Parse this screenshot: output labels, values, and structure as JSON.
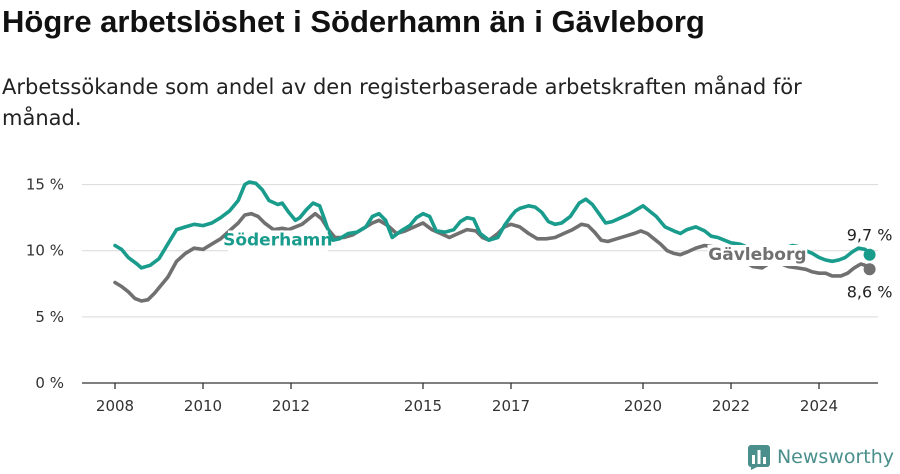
{
  "header": {
    "title": "Högre arbetslöshet i Söderhamn än i Gävleborg",
    "subtitle": "Arbetssökande som andel av den registerbaserade arbetskraften månad för månad."
  },
  "brand": {
    "name": "Newsworthy",
    "logo_icon": "bar-chart-logo-icon"
  },
  "colors": {
    "soderhamn": "#1a9c8d",
    "gavleborg": "#707070",
    "grid": "#d9d9d9",
    "axis": "#333333",
    "brand": "#4a8f8c"
  },
  "chart_data": {
    "type": "line",
    "title": "Högre arbetslöshet i Söderhamn än i Gävleborg",
    "subtitle": "Arbetssökande som andel av den registerbaserade arbetskraften månad för månad.",
    "xlabel": "",
    "ylabel": "",
    "xlim": [
      2007.7,
      2025.3
    ],
    "ylim": [
      0,
      15.5
    ],
    "x_ticks": [
      2008,
      2010,
      2012,
      2015,
      2017,
      2020,
      2022,
      2024
    ],
    "x_tick_labels": [
      "2008",
      "2010",
      "2012",
      "2015",
      "2017",
      "2020",
      "2022",
      "2024"
    ],
    "y_ticks": [
      0,
      5,
      10,
      15
    ],
    "y_tick_labels": [
      "0 %",
      "5 %",
      "10 %",
      "15 %"
    ],
    "grid": true,
    "legend": "inline labels",
    "series": [
      {
        "name": "Söderhamn",
        "label_position": [
          2011.7,
          10.4
        ],
        "end_label": "9,7 %",
        "points": [
          [
            2008.0,
            10.4
          ],
          [
            2008.15,
            10.1
          ],
          [
            2008.3,
            9.5
          ],
          [
            2008.5,
            9.0
          ],
          [
            2008.6,
            8.7
          ],
          [
            2008.8,
            8.9
          ],
          [
            2009.0,
            9.4
          ],
          [
            2009.2,
            10.5
          ],
          [
            2009.4,
            11.6
          ],
          [
            2009.6,
            11.8
          ],
          [
            2009.8,
            12.0
          ],
          [
            2010.0,
            11.9
          ],
          [
            2010.2,
            12.1
          ],
          [
            2010.4,
            12.5
          ],
          [
            2010.6,
            13.0
          ],
          [
            2010.8,
            13.8
          ],
          [
            2010.95,
            15.0
          ],
          [
            2011.05,
            15.2
          ],
          [
            2011.2,
            15.1
          ],
          [
            2011.35,
            14.6
          ],
          [
            2011.5,
            13.8
          ],
          [
            2011.7,
            13.5
          ],
          [
            2011.8,
            13.6
          ],
          [
            2011.95,
            12.9
          ],
          [
            2012.1,
            12.3
          ],
          [
            2012.2,
            12.5
          ],
          [
            2012.35,
            13.1
          ],
          [
            2012.5,
            13.6
          ],
          [
            2012.65,
            13.4
          ],
          [
            2012.75,
            12.5
          ],
          [
            2012.85,
            11.5
          ],
          [
            2012.95,
            10.8
          ],
          [
            2013.1,
            10.9
          ],
          [
            2013.3,
            11.3
          ],
          [
            2013.5,
            11.4
          ],
          [
            2013.7,
            11.8
          ],
          [
            2013.85,
            12.6
          ],
          [
            2014.0,
            12.8
          ],
          [
            2014.15,
            12.3
          ],
          [
            2014.3,
            11.0
          ],
          [
            2014.5,
            11.5
          ],
          [
            2014.7,
            11.9
          ],
          [
            2014.85,
            12.5
          ],
          [
            2015.0,
            12.8
          ],
          [
            2015.15,
            12.6
          ],
          [
            2015.3,
            11.5
          ],
          [
            2015.5,
            11.4
          ],
          [
            2015.7,
            11.6
          ],
          [
            2015.85,
            12.2
          ],
          [
            2016.0,
            12.5
          ],
          [
            2016.15,
            12.4
          ],
          [
            2016.3,
            11.3
          ],
          [
            2016.5,
            10.8
          ],
          [
            2016.7,
            11.0
          ],
          [
            2016.85,
            11.9
          ],
          [
            2017.0,
            12.6
          ],
          [
            2017.1,
            13.0
          ],
          [
            2017.2,
            13.2
          ],
          [
            2017.4,
            13.4
          ],
          [
            2017.55,
            13.3
          ],
          [
            2017.7,
            12.9
          ],
          [
            2017.85,
            12.2
          ],
          [
            2018.0,
            12.0
          ],
          [
            2018.15,
            12.1
          ],
          [
            2018.35,
            12.6
          ],
          [
            2018.55,
            13.6
          ],
          [
            2018.7,
            13.9
          ],
          [
            2018.85,
            13.5
          ],
          [
            2019.0,
            12.8
          ],
          [
            2019.15,
            12.1
          ],
          [
            2019.3,
            12.2
          ],
          [
            2019.5,
            12.5
          ],
          [
            2019.7,
            12.8
          ],
          [
            2019.85,
            13.1
          ],
          [
            2020.0,
            13.4
          ],
          [
            2020.15,
            13.0
          ],
          [
            2020.3,
            12.6
          ],
          [
            2020.5,
            11.8
          ],
          [
            2020.7,
            11.5
          ],
          [
            2020.85,
            11.3
          ],
          [
            2021.0,
            11.6
          ],
          [
            2021.2,
            11.8
          ],
          [
            2021.4,
            11.5
          ],
          [
            2021.55,
            11.1
          ],
          [
            2021.7,
            11.0
          ],
          [
            2021.85,
            10.8
          ],
          [
            2022.0,
            10.6
          ],
          [
            2022.2,
            10.5
          ],
          [
            2022.35,
            10.3
          ],
          [
            2022.5,
            10.2
          ],
          [
            2022.7,
            10.0
          ],
          [
            2022.9,
            9.8
          ],
          [
            2023.05,
            9.9
          ],
          [
            2023.2,
            10.2
          ],
          [
            2023.4,
            10.4
          ],
          [
            2023.55,
            10.3
          ],
          [
            2023.7,
            10.0
          ],
          [
            2023.85,
            9.8
          ],
          [
            2024.0,
            9.5
          ],
          [
            2024.15,
            9.3
          ],
          [
            2024.3,
            9.2
          ],
          [
            2024.45,
            9.3
          ],
          [
            2024.6,
            9.5
          ],
          [
            2024.75,
            9.9
          ],
          [
            2024.9,
            10.2
          ],
          [
            2025.05,
            10.1
          ],
          [
            2025.15,
            9.7
          ]
        ]
      },
      {
        "name": "Gävleborg",
        "label_position": [
          2022.6,
          9.3
        ],
        "end_label": "8,6 %",
        "points": [
          [
            2008.0,
            7.6
          ],
          [
            2008.15,
            7.3
          ],
          [
            2008.3,
            6.9
          ],
          [
            2008.45,
            6.4
          ],
          [
            2008.6,
            6.2
          ],
          [
            2008.75,
            6.3
          ],
          [
            2008.9,
            6.8
          ],
          [
            2009.05,
            7.4
          ],
          [
            2009.2,
            8.0
          ],
          [
            2009.4,
            9.2
          ],
          [
            2009.6,
            9.8
          ],
          [
            2009.8,
            10.2
          ],
          [
            2010.0,
            10.1
          ],
          [
            2010.2,
            10.5
          ],
          [
            2010.4,
            10.9
          ],
          [
            2010.6,
            11.5
          ],
          [
            2010.8,
            12.1
          ],
          [
            2010.95,
            12.7
          ],
          [
            2011.1,
            12.8
          ],
          [
            2011.25,
            12.6
          ],
          [
            2011.4,
            12.1
          ],
          [
            2011.6,
            11.6
          ],
          [
            2011.8,
            11.7
          ],
          [
            2011.95,
            11.6
          ],
          [
            2012.1,
            11.8
          ],
          [
            2012.25,
            12.0
          ],
          [
            2012.4,
            12.4
          ],
          [
            2012.55,
            12.8
          ],
          [
            2012.7,
            12.4
          ],
          [
            2012.85,
            11.6
          ],
          [
            2013.0,
            11.0
          ],
          [
            2013.2,
            11.0
          ],
          [
            2013.4,
            11.2
          ],
          [
            2013.6,
            11.6
          ],
          [
            2013.85,
            12.1
          ],
          [
            2014.0,
            12.3
          ],
          [
            2014.2,
            11.9
          ],
          [
            2014.4,
            11.3
          ],
          [
            2014.6,
            11.5
          ],
          [
            2014.8,
            11.8
          ],
          [
            2015.0,
            12.1
          ],
          [
            2015.2,
            11.6
          ],
          [
            2015.4,
            11.3
          ],
          [
            2015.6,
            11.0
          ],
          [
            2015.8,
            11.3
          ],
          [
            2016.0,
            11.6
          ],
          [
            2016.2,
            11.5
          ],
          [
            2016.35,
            11.0
          ],
          [
            2016.5,
            10.8
          ],
          [
            2016.7,
            11.3
          ],
          [
            2016.85,
            11.8
          ],
          [
            2017.0,
            12.0
          ],
          [
            2017.2,
            11.8
          ],
          [
            2017.4,
            11.3
          ],
          [
            2017.6,
            10.9
          ],
          [
            2017.8,
            10.9
          ],
          [
            2018.0,
            11.0
          ],
          [
            2018.2,
            11.3
          ],
          [
            2018.4,
            11.6
          ],
          [
            2018.6,
            12.0
          ],
          [
            2018.75,
            11.9
          ],
          [
            2018.9,
            11.4
          ],
          [
            2019.05,
            10.8
          ],
          [
            2019.2,
            10.7
          ],
          [
            2019.4,
            10.9
          ],
          [
            2019.6,
            11.1
          ],
          [
            2019.8,
            11.3
          ],
          [
            2019.95,
            11.5
          ],
          [
            2020.1,
            11.3
          ],
          [
            2020.25,
            10.9
          ],
          [
            2020.4,
            10.5
          ],
          [
            2020.55,
            10.0
          ],
          [
            2020.7,
            9.8
          ],
          [
            2020.85,
            9.7
          ],
          [
            2021.0,
            9.9
          ],
          [
            2021.2,
            10.2
          ],
          [
            2021.4,
            10.4
          ],
          [
            2021.6,
            10.3
          ],
          [
            2021.8,
            10.0
          ],
          [
            2022.0,
            9.7
          ],
          [
            2022.2,
            9.4
          ],
          [
            2022.35,
            9.1
          ],
          [
            2022.5,
            8.8
          ],
          [
            2022.7,
            8.7
          ],
          [
            2022.85,
            9.0
          ],
          [
            2023.0,
            9.2
          ],
          [
            2023.15,
            9.0
          ],
          [
            2023.3,
            8.8
          ],
          [
            2023.5,
            8.7
          ],
          [
            2023.7,
            8.6
          ],
          [
            2023.85,
            8.4
          ],
          [
            2024.0,
            8.3
          ],
          [
            2024.15,
            8.3
          ],
          [
            2024.3,
            8.1
          ],
          [
            2024.5,
            8.1
          ],
          [
            2024.65,
            8.3
          ],
          [
            2024.8,
            8.7
          ],
          [
            2024.95,
            9.0
          ],
          [
            2025.05,
            8.9
          ],
          [
            2025.15,
            8.6
          ]
        ]
      }
    ],
    "mask_spans": [
      {
        "series": "Gävleborg",
        "from": 2011.95,
        "to": 2013.0
      },
      {
        "series": "Söderhamn",
        "from": 2013.55,
        "to": 2014.05
      },
      {
        "series": "Gävleborg",
        "from": 2021.4,
        "to": 2023.4
      },
      {
        "series": "Söderhamn",
        "from": 2023.15,
        "to": 2023.35
      }
    ]
  }
}
